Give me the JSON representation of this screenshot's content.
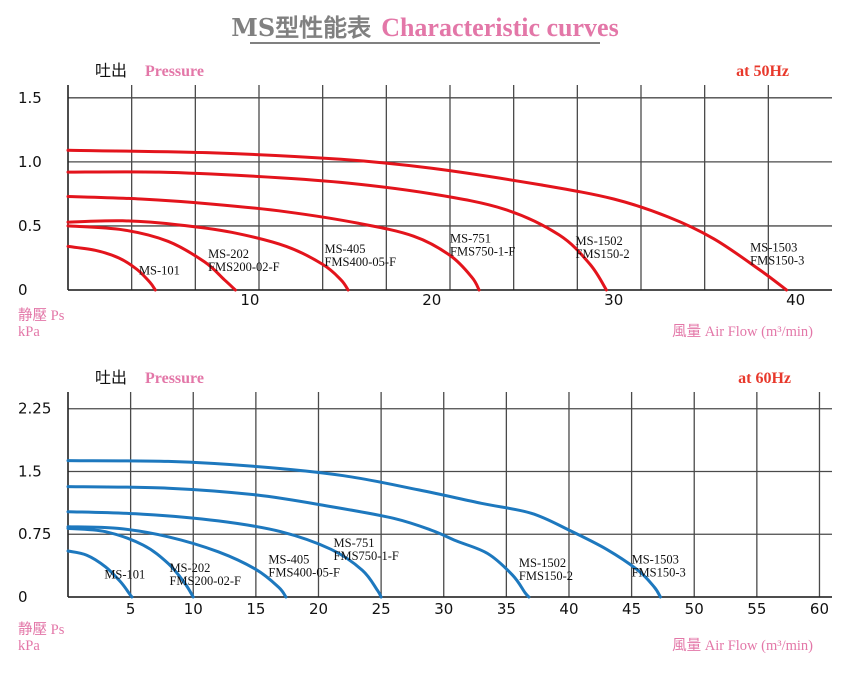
{
  "title": {
    "main": "MS型性能表",
    "english": "Characteristic curves"
  },
  "chart_data": [
    {
      "type": "line",
      "pressure_label": "吐出",
      "pressure_label_en": "Pressure",
      "frequency": "at  50Hz",
      "ylabel": "静壓 Ps",
      "yunit": "kPa",
      "xlabel": "風量 Air Flow (m³/min)",
      "xlim": [
        0,
        42
      ],
      "ylim": [
        0,
        1.6
      ],
      "x_ticks": [
        "10",
        "20",
        "30",
        "40"
      ],
      "x_tick_values": [
        10,
        20,
        30,
        40
      ],
      "y_ticks": [
        "0",
        "0.5",
        "1.0",
        "1.5"
      ],
      "y_tick_values": [
        0,
        0.5,
        1.0,
        1.5
      ],
      "grid": true,
      "color": "#e3141c",
      "series": [
        {
          "name": "MS-101",
          "sublabel": "",
          "label_at": [
            3.9,
            0.12
          ],
          "points": [
            [
              0,
              0.34
            ],
            [
              1.5,
              0.31
            ],
            [
              2.8,
              0.25
            ],
            [
              3.8,
              0.16
            ],
            [
              4.5,
              0.06
            ],
            [
              4.8,
              0
            ]
          ]
        },
        {
          "name": "MS-202",
          "sublabel": "FMS200-02-F",
          "label_at": [
            7.7,
            0.25
          ],
          "points": [
            [
              0,
              0.5
            ],
            [
              3,
              0.47
            ],
            [
              5.5,
              0.38
            ],
            [
              7.5,
              0.22
            ],
            [
              8.6,
              0.08
            ],
            [
              9.2,
              0
            ]
          ]
        },
        {
          "name": "MS-405",
          "sublabel": "FMS400-05-F",
          "label_at": [
            14.1,
            0.29
          ],
          "points": [
            [
              0,
              0.53
            ],
            [
              3,
              0.54
            ],
            [
              6,
              0.51
            ],
            [
              9,
              0.45
            ],
            [
              12,
              0.34
            ],
            [
              14,
              0.2
            ],
            [
              15.0,
              0.08
            ],
            [
              15.4,
              0
            ]
          ]
        },
        {
          "name": "MS-751",
          "sublabel": "FMS750-1-F",
          "label_at": [
            21.0,
            0.37
          ],
          "points": [
            [
              0,
              0.73
            ],
            [
              4,
              0.71
            ],
            [
              8,
              0.67
            ],
            [
              12,
              0.61
            ],
            [
              16,
              0.52
            ],
            [
              19,
              0.42
            ],
            [
              21,
              0.27
            ],
            [
              22.2,
              0.1
            ],
            [
              22.6,
              0
            ]
          ]
        },
        {
          "name": "MS-1502",
          "sublabel": "FMS150-2",
          "label_at": [
            27.9,
            0.35
          ],
          "points": [
            [
              0,
              0.92
            ],
            [
              5,
              0.92
            ],
            [
              10,
              0.89
            ],
            [
              15,
              0.84
            ],
            [
              20,
              0.75
            ],
            [
              24,
              0.63
            ],
            [
              27,
              0.43
            ],
            [
              28.7,
              0.2
            ],
            [
              29.6,
              0
            ]
          ]
        },
        {
          "name": "MS-1503",
          "sublabel": "FMS150-3",
          "label_at": [
            37.5,
            0.3
          ],
          "points": [
            [
              0,
              1.09
            ],
            [
              8,
              1.07
            ],
            [
              15,
              1.02
            ],
            [
              20,
              0.95
            ],
            [
              26,
              0.82
            ],
            [
              30,
              0.71
            ],
            [
              33,
              0.57
            ],
            [
              35.5,
              0.4
            ],
            [
              38,
              0.16
            ],
            [
              39.5,
              0
            ]
          ]
        }
      ]
    },
    {
      "type": "line",
      "pressure_label": "吐出",
      "pressure_label_en": "Pressure",
      "frequency": "at  60Hz",
      "ylabel": "静壓 Ps",
      "yunit": "kPa",
      "xlabel": "風量 Air Flow (m³/min)",
      "xlim": [
        0,
        61
      ],
      "ylim": [
        0,
        2.45
      ],
      "x_ticks": [
        "5",
        "10",
        "15",
        "20",
        "25",
        "30",
        "35",
        "40",
        "45",
        "50",
        "55",
        "60"
      ],
      "x_tick_values": [
        5,
        10,
        15,
        20,
        25,
        30,
        35,
        40,
        45,
        50,
        55,
        60
      ],
      "y_ticks": [
        "0",
        "0.75",
        "1.5",
        "2.25"
      ],
      "y_tick_values": [
        0,
        0.75,
        1.5,
        2.25
      ],
      "grid": true,
      "color": "#1d78be",
      "series": [
        {
          "name": "MS-101",
          "sublabel": "",
          "label_at": [
            2.9,
            0.22
          ],
          "points": [
            [
              0,
              0.55
            ],
            [
              1.5,
              0.5
            ],
            [
              3,
              0.36
            ],
            [
              4.2,
              0.18
            ],
            [
              4.9,
              0.04
            ],
            [
              5.1,
              0
            ]
          ]
        },
        {
          "name": "MS-202",
          "sublabel": "FMS200-02-F",
          "label_at": [
            8.1,
            0.3
          ],
          "points": [
            [
              0,
              0.82
            ],
            [
              3,
              0.78
            ],
            [
              6,
              0.62
            ],
            [
              8,
              0.4
            ],
            [
              9.3,
              0.17
            ],
            [
              10.0,
              0
            ]
          ]
        },
        {
          "name": "MS-405",
          "sublabel": "FMS400-05-F",
          "label_at": [
            16.0,
            0.4
          ],
          "points": [
            [
              0,
              0.84
            ],
            [
              4,
              0.82
            ],
            [
              8,
              0.72
            ],
            [
              12,
              0.54
            ],
            [
              15,
              0.33
            ],
            [
              16.8,
              0.12
            ],
            [
              17.4,
              0
            ]
          ]
        },
        {
          "name": "MS-751",
          "sublabel": "FMS750-1-F",
          "label_at": [
            21.2,
            0.6
          ],
          "points": [
            [
              0,
              1.02
            ],
            [
              6,
              0.99
            ],
            [
              12,
              0.91
            ],
            [
              17,
              0.78
            ],
            [
              21,
              0.57
            ],
            [
              23.5,
              0.32
            ],
            [
              24.7,
              0.08
            ],
            [
              25.0,
              0
            ]
          ]
        },
        {
          "name": "MS-1502",
          "sublabel": "FMS150-2",
          "label_at": [
            36.0,
            0.36
          ],
          "points": [
            [
              0,
              1.32
            ],
            [
              8,
              1.3
            ],
            [
              15,
              1.22
            ],
            [
              21,
              1.08
            ],
            [
              26,
              0.94
            ],
            [
              29,
              0.8
            ],
            [
              31,
              0.67
            ],
            [
              33.5,
              0.52
            ],
            [
              35.5,
              0.26
            ],
            [
              36.5,
              0.05
            ],
            [
              36.8,
              0
            ]
          ]
        },
        {
          "name": "MS-1503",
          "sublabel": "FMS150-3",
          "label_at": [
            45.0,
            0.4
          ],
          "points": [
            [
              0,
              1.63
            ],
            [
              8,
              1.62
            ],
            [
              15,
              1.56
            ],
            [
              22,
              1.45
            ],
            [
              28,
              1.28
            ],
            [
              33,
              1.12
            ],
            [
              37,
              1.0
            ],
            [
              40,
              0.8
            ],
            [
              43,
              0.57
            ],
            [
              45.5,
              0.32
            ],
            [
              46.8,
              0.12
            ],
            [
              47.3,
              0
            ]
          ]
        }
      ]
    }
  ]
}
